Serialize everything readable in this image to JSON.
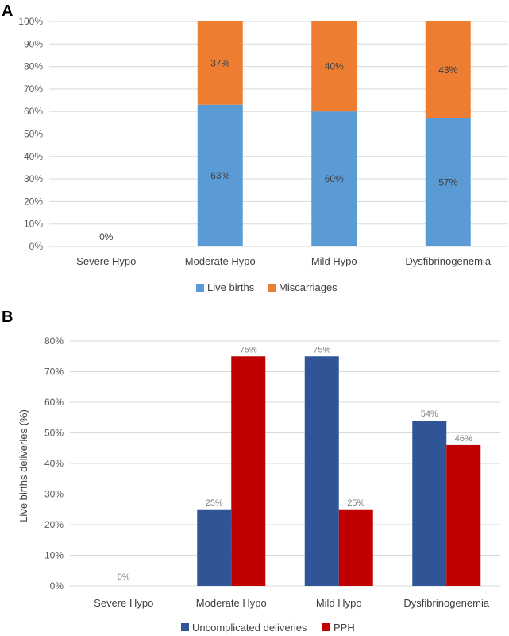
{
  "chart_data": [
    {
      "panel_label": "A",
      "type": "bar",
      "stacked": true,
      "title": "",
      "xlabel": "",
      "ylabel": "",
      "ylim": [
        0,
        100
      ],
      "yticks": [
        0,
        10,
        20,
        30,
        40,
        50,
        60,
        70,
        80,
        90,
        100
      ],
      "ytick_suffix": "%",
      "grid": true,
      "legend": "bottom",
      "categories": [
        "Severe Hypo",
        "Moderate Hypo",
        "Mild Hypo",
        "Dysfibrinogenemia"
      ],
      "series": [
        {
          "name": "Live births",
          "color": "#5b9bd5",
          "values": [
            0,
            63,
            60,
            57
          ],
          "labels": [
            "0%",
            "63%",
            "60%",
            "57%"
          ]
        },
        {
          "name": "Miscarriages",
          "color": "#ed7d31",
          "values": [
            0,
            37,
            40,
            43
          ],
          "labels": [
            "",
            "37%",
            "40%",
            "43%"
          ]
        }
      ]
    },
    {
      "panel_label": "B",
      "type": "bar",
      "stacked": false,
      "title": "",
      "xlabel": "",
      "ylabel": "Live births deliveries (%)",
      "ylim": [
        0,
        80
      ],
      "yticks": [
        0,
        10,
        20,
        30,
        40,
        50,
        60,
        70,
        80
      ],
      "ytick_suffix": "%",
      "grid": true,
      "legend": "bottom",
      "categories": [
        "Severe Hypo",
        "Moderate Hypo",
        "Mild Hypo",
        "Dysfibrinogenemia"
      ],
      "series": [
        {
          "name": "Uncomplicated deliveries",
          "color": "#2f5597",
          "values": [
            0,
            25,
            75,
            54
          ],
          "labels": [
            "0%",
            "25%",
            "75%",
            "54%"
          ]
        },
        {
          "name": "PPH",
          "color": "#c00000",
          "values": [
            0,
            75,
            25,
            46
          ],
          "labels": [
            "",
            "75%",
            "25%",
            "46%"
          ]
        }
      ]
    }
  ]
}
